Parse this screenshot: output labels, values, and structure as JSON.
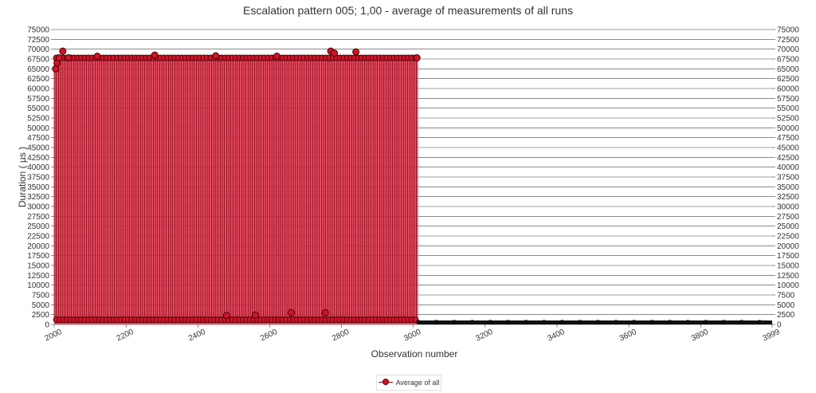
{
  "chart_data": {
    "type": "line",
    "title": "Escalation pattern 005; 1,00 - average of measurements of all runs",
    "xlabel": "Observation number",
    "ylabel": "Duration ( µs )",
    "xlim": [
      2000,
      3999
    ],
    "ylim": [
      0,
      75000
    ],
    "x_ticks": [
      "2000",
      "2200",
      "2400",
      "2600",
      "2800",
      "3000",
      "3200",
      "3400",
      "3600",
      "3800",
      "3999"
    ],
    "y_ticks": [
      "0",
      "2500",
      "5000",
      "7500",
      "10000",
      "12500",
      "15000",
      "17500",
      "20000",
      "22500",
      "25000",
      "27500",
      "30000",
      "32500",
      "35000",
      "37500",
      "40000",
      "42500",
      "45000",
      "47500",
      "50000",
      "52500",
      "55000",
      "57500",
      "60000",
      "62500",
      "65000",
      "67500",
      "70000",
      "72500",
      "75000"
    ],
    "legend": {
      "position": "bottom",
      "entries": [
        "Average of all"
      ]
    },
    "grid": true,
    "series": [
      {
        "name": "Average of all",
        "color": "#d0142a",
        "segments": [
          {
            "x_start": 2000,
            "x_end": 3013,
            "pattern": "alternating",
            "high": 67800,
            "low": 1200
          },
          {
            "x_start": 3014,
            "x_end": 3999,
            "pattern": "flat",
            "value": 600
          }
        ],
        "points": [
          {
            "x": 2004,
            "y": 65000
          },
          {
            "x": 2008,
            "y": 66500
          },
          {
            "x": 2014,
            "y": 67800
          },
          {
            "x": 2024,
            "y": 69500
          },
          {
            "x": 2040,
            "y": 67800
          },
          {
            "x": 2120,
            "y": 68200
          },
          {
            "x": 2280,
            "y": 68500
          },
          {
            "x": 2450,
            "y": 68300
          },
          {
            "x": 2620,
            "y": 68200
          },
          {
            "x": 2770,
            "y": 69500
          },
          {
            "x": 2780,
            "y": 69000
          },
          {
            "x": 2840,
            "y": 69300
          },
          {
            "x": 3010,
            "y": 67800
          },
          {
            "x": 2480,
            "y": 2300
          },
          {
            "x": 2660,
            "y": 3000
          },
          {
            "x": 2755,
            "y": 3000
          },
          {
            "x": 2560,
            "y": 2400
          }
        ]
      }
    ]
  }
}
